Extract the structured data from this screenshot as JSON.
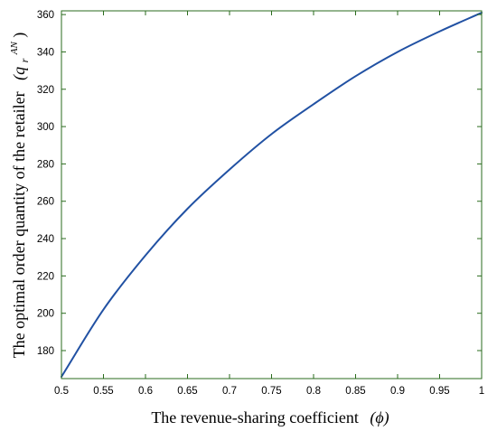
{
  "chart_data": {
    "type": "line",
    "title": "",
    "xlabel": "The revenue-sharing coefficient",
    "xlabel_symbol": "(ϕ)",
    "ylabel": "The optimal order quantity of the retailer",
    "ylabel_symbol": "(q",
    "ylabel_symbol_sub": "r",
    "ylabel_symbol_sup": "AN",
    "ylabel_symbol_close": ")",
    "xlim": [
      0.5,
      1.0
    ],
    "ylim": [
      165,
      362
    ],
    "x_ticks": [
      "0.5",
      "0.55",
      "0.6",
      "0.65",
      "0.7",
      "0.75",
      "0.8",
      "0.85",
      "0.9",
      "0.95",
      "1"
    ],
    "y_ticks": [
      "180",
      "200",
      "220",
      "240",
      "260",
      "280",
      "300",
      "320",
      "340",
      "360"
    ],
    "grid": false,
    "series": [
      {
        "color": "#2151a3",
        "x": [
          0.5,
          0.55,
          0.6,
          0.65,
          0.7,
          0.75,
          0.8,
          0.85,
          0.9,
          0.95,
          1.0
        ],
        "y": [
          166,
          202,
          231,
          256,
          277,
          296,
          312,
          327,
          340,
          351,
          361
        ]
      }
    ],
    "frame_color": "#2a6b1d"
  }
}
